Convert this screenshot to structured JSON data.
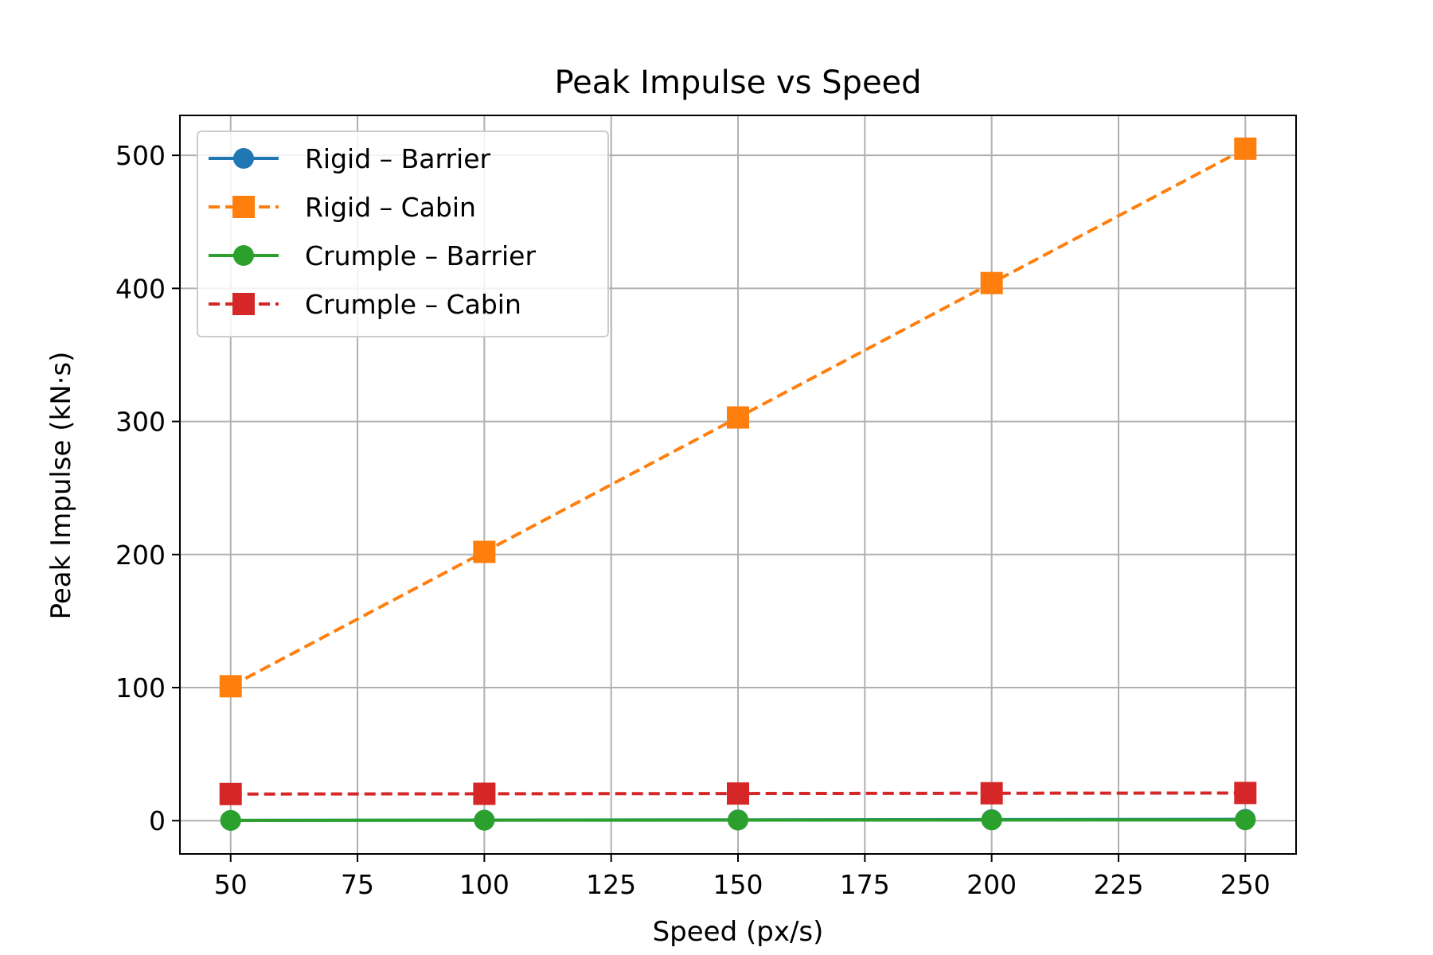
{
  "chart_data": {
    "type": "line",
    "title": "Peak Impulse vs Speed",
    "xlabel": "Speed (px/s)",
    "ylabel": "Peak Impulse (kN·s)",
    "x": [
      50,
      100,
      150,
      200,
      250
    ],
    "xlim": [
      40,
      260
    ],
    "ylim": [
      -25,
      530
    ],
    "xticks": [
      50,
      75,
      100,
      125,
      150,
      175,
      200,
      225,
      250
    ],
    "yticks": [
      0,
      100,
      200,
      300,
      400,
      500
    ],
    "grid": true,
    "legend_position": "upper left",
    "series": [
      {
        "name": "Rigid – Barrier",
        "values": [
          0.2,
          0.4,
          0.6,
          0.8,
          1.0
        ],
        "color": "#1f77b4",
        "line": "solid",
        "marker": "circle"
      },
      {
        "name": "Rigid – Cabin",
        "values": [
          101,
          202,
          303,
          404,
          505
        ],
        "color": "#ff7f0e",
        "line": "dashed",
        "marker": "square"
      },
      {
        "name": "Crumple – Barrier",
        "values": [
          0.2,
          0.3,
          0.4,
          0.5,
          0.6
        ],
        "color": "#2ca02c",
        "line": "solid",
        "marker": "circle"
      },
      {
        "name": "Crumple – Cabin",
        "values": [
          20,
          20.2,
          20.4,
          20.6,
          20.8
        ],
        "color": "#d62728",
        "line": "dashed",
        "marker": "square"
      }
    ]
  }
}
